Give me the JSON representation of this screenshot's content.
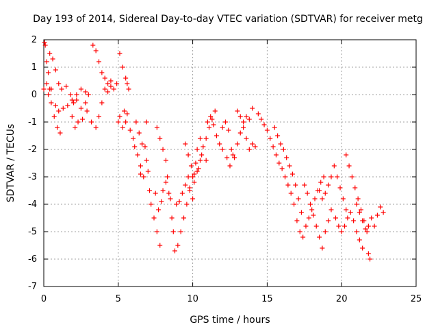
{
  "chart_data": {
    "type": "scatter",
    "title": "Day 193 of 2014, Sidereal Day-to-day VTEC variation (SDTVAR) for receiver metg",
    "xlabel": "GPS time / hours",
    "ylabel": "SDTVAR / TECUs",
    "xlim": [
      0,
      25
    ],
    "ylim": [
      -7,
      2
    ],
    "xticks": [
      "0",
      "5",
      "10",
      "15",
      "20",
      "25"
    ],
    "yticks": [
      "-7",
      "-6",
      "-5",
      "-4",
      "-3",
      "-2",
      "-1",
      "0",
      "1",
      "2"
    ],
    "grid": true,
    "marker": "+",
    "color": "#ff0000",
    "series": [
      {
        "name": "SDTVAR",
        "points": [
          [
            0.0,
            0.2
          ],
          [
            0.05,
            1.9
          ],
          [
            0.1,
            1.8
          ],
          [
            0.2,
            1.2
          ],
          [
            0.3,
            0.8
          ],
          [
            0.4,
            0.2
          ],
          [
            0.5,
            -0.3
          ],
          [
            0.7,
            -0.8
          ],
          [
            0.9,
            -1.2
          ],
          [
            1.1,
            -1.4
          ],
          [
            0.2,
            0.4
          ],
          [
            0.4,
            1.5
          ],
          [
            0.6,
            1.3
          ],
          [
            0.8,
            0.9
          ],
          [
            1.0,
            0.4
          ],
          [
            1.2,
            0.2
          ],
          [
            1.5,
            0.3
          ],
          [
            1.8,
            0.0
          ],
          [
            2.0,
            -0.3
          ],
          [
            2.2,
            -0.2
          ],
          [
            2.5,
            -0.5
          ],
          [
            2.8,
            -0.3
          ],
          [
            3.0,
            0.0
          ],
          [
            3.3,
            1.8
          ],
          [
            3.5,
            1.6
          ],
          [
            3.7,
            1.2
          ],
          [
            3.9,
            0.8
          ],
          [
            4.1,
            0.6
          ],
          [
            4.3,
            0.4
          ],
          [
            4.5,
            0.5
          ],
          [
            0.3,
            0.0
          ],
          [
            0.5,
            0.2
          ],
          [
            0.8,
            -0.4
          ],
          [
            1.0,
            -0.6
          ],
          [
            1.3,
            -0.5
          ],
          [
            1.6,
            -0.4
          ],
          [
            1.9,
            -0.2
          ],
          [
            2.2,
            0.0
          ],
          [
            2.5,
            0.2
          ],
          [
            2.8,
            0.1
          ],
          [
            1.9,
            -0.8
          ],
          [
            2.1,
            -1.2
          ],
          [
            2.3,
            -1.0
          ],
          [
            2.6,
            -0.9
          ],
          [
            2.9,
            -0.6
          ],
          [
            3.2,
            -1.0
          ],
          [
            3.5,
            -1.2
          ],
          [
            3.7,
            -0.8
          ],
          [
            3.9,
            -0.3
          ],
          [
            4.1,
            0.2
          ],
          [
            4.3,
            0.1
          ],
          [
            4.5,
            0.3
          ],
          [
            4.7,
            0.2
          ],
          [
            4.9,
            0.4
          ],
          [
            5.1,
            1.5
          ],
          [
            5.3,
            1.0
          ],
          [
            5.5,
            0.6
          ],
          [
            5.6,
            0.4
          ],
          [
            5.7,
            0.2
          ],
          [
            5.5,
            -1.0
          ],
          [
            5.0,
            -1.0
          ],
          [
            5.1,
            -0.8
          ],
          [
            5.3,
            -1.2
          ],
          [
            5.4,
            -0.6
          ],
          [
            5.6,
            -0.7
          ],
          [
            5.8,
            -1.3
          ],
          [
            6.0,
            -1.6
          ],
          [
            6.1,
            -1.9
          ],
          [
            6.3,
            -2.2
          ],
          [
            6.5,
            -2.6
          ],
          [
            6.2,
            -1.0
          ],
          [
            6.4,
            -1.4
          ],
          [
            6.6,
            -1.8
          ],
          [
            6.8,
            -1.9
          ],
          [
            6.9,
            -1.0
          ],
          [
            6.5,
            -2.9
          ],
          [
            6.7,
            -3.0
          ],
          [
            6.9,
            -2.4
          ],
          [
            7.0,
            -2.8
          ],
          [
            7.1,
            -3.5
          ],
          [
            7.2,
            -4.0
          ],
          [
            7.4,
            -4.5
          ],
          [
            7.6,
            -5.0
          ],
          [
            7.8,
            -5.5
          ],
          [
            7.5,
            -3.6
          ],
          [
            7.7,
            -4.2
          ],
          [
            7.9,
            -3.9
          ],
          [
            8.0,
            -3.5
          ],
          [
            8.2,
            -3.2
          ],
          [
            8.4,
            -3.6
          ],
          [
            7.6,
            -1.2
          ],
          [
            7.8,
            -1.6
          ],
          [
            8.0,
            -2.0
          ],
          [
            8.2,
            -2.4
          ],
          [
            8.3,
            -3.0
          ],
          [
            8.5,
            -3.8
          ],
          [
            8.6,
            -4.5
          ],
          [
            8.7,
            -5.0
          ],
          [
            8.8,
            -5.7
          ],
          [
            9.0,
            -5.5
          ],
          [
            9.2,
            -5.0
          ],
          [
            9.4,
            -4.5
          ],
          [
            9.6,
            -4.0
          ],
          [
            9.8,
            -3.5
          ],
          [
            10.0,
            -3.0
          ],
          [
            10.2,
            -2.5
          ],
          [
            10.3,
            -2.0
          ],
          [
            10.5,
            -1.6
          ],
          [
            10.7,
            -1.9
          ],
          [
            10.9,
            -2.4
          ],
          [
            8.9,
            -4.0
          ],
          [
            9.1,
            -3.9
          ],
          [
            9.3,
            -3.6
          ],
          [
            9.5,
            -3.3
          ],
          [
            9.7,
            -3.0
          ],
          [
            9.8,
            -3.4
          ],
          [
            10.0,
            -3.8
          ],
          [
            10.1,
            -3.2
          ],
          [
            10.3,
            -2.8
          ],
          [
            10.5,
            -2.4
          ],
          [
            9.5,
            -1.8
          ],
          [
            9.7,
            -2.2
          ],
          [
            9.9,
            -2.6
          ],
          [
            10.1,
            -2.9
          ],
          [
            10.4,
            -2.7
          ],
          [
            10.6,
            -2.2
          ],
          [
            10.9,
            -1.6
          ],
          [
            11.1,
            -1.2
          ],
          [
            11.3,
            -0.9
          ],
          [
            11.5,
            -0.6
          ],
          [
            11.0,
            -1.0
          ],
          [
            11.2,
            -0.8
          ],
          [
            11.4,
            -1.1
          ],
          [
            11.6,
            -1.5
          ],
          [
            11.8,
            -1.8
          ],
          [
            12.0,
            -1.2
          ],
          [
            12.2,
            -1.0
          ],
          [
            12.4,
            -1.3
          ],
          [
            12.6,
            -2.0
          ],
          [
            12.8,
            -2.3
          ],
          [
            12.0,
            -2.0
          ],
          [
            12.3,
            -2.3
          ],
          [
            12.5,
            -2.6
          ],
          [
            12.7,
            -2.2
          ],
          [
            13.0,
            -1.8
          ],
          [
            13.2,
            -1.4
          ],
          [
            13.4,
            -1.0
          ],
          [
            13.6,
            -0.8
          ],
          [
            13.8,
            -0.9
          ],
          [
            14.0,
            -0.5
          ],
          [
            13.0,
            -0.6
          ],
          [
            13.2,
            -0.8
          ],
          [
            13.4,
            -1.2
          ],
          [
            13.6,
            -1.6
          ],
          [
            13.8,
            -2.0
          ],
          [
            14.0,
            -1.8
          ],
          [
            14.2,
            -1.9
          ],
          [
            14.4,
            -0.7
          ],
          [
            14.6,
            -0.9
          ],
          [
            14.8,
            -1.1
          ],
          [
            15.0,
            -1.3
          ],
          [
            15.2,
            -1.6
          ],
          [
            15.4,
            -1.9
          ],
          [
            15.6,
            -2.2
          ],
          [
            15.8,
            -2.5
          ],
          [
            16.0,
            -2.7
          ],
          [
            16.2,
            -3.0
          ],
          [
            16.4,
            -3.3
          ],
          [
            16.6,
            -3.6
          ],
          [
            16.8,
            -4.0
          ],
          [
            15.5,
            -1.2
          ],
          [
            15.7,
            -1.5
          ],
          [
            15.9,
            -1.8
          ],
          [
            16.1,
            -2.0
          ],
          [
            16.3,
            -2.3
          ],
          [
            16.5,
            -2.6
          ],
          [
            16.7,
            -2.9
          ],
          [
            16.9,
            -3.3
          ],
          [
            17.1,
            -3.8
          ],
          [
            17.3,
            -4.3
          ],
          [
            17.0,
            -4.6
          ],
          [
            17.2,
            -5.0
          ],
          [
            17.4,
            -5.2
          ],
          [
            17.6,
            -4.8
          ],
          [
            17.8,
            -4.5
          ],
          [
            18.0,
            -4.2
          ],
          [
            18.2,
            -3.8
          ],
          [
            18.4,
            -3.5
          ],
          [
            18.6,
            -3.2
          ],
          [
            18.8,
            -3.0
          ],
          [
            17.5,
            -3.3
          ],
          [
            17.7,
            -3.6
          ],
          [
            17.9,
            -4.0
          ],
          [
            18.1,
            -4.4
          ],
          [
            18.3,
            -4.8
          ],
          [
            18.5,
            -5.2
          ],
          [
            18.7,
            -5.6
          ],
          [
            18.9,
            -5.0
          ],
          [
            19.1,
            -4.6
          ],
          [
            19.3,
            -4.2
          ],
          [
            18.5,
            -3.5
          ],
          [
            18.7,
            -3.8
          ],
          [
            18.9,
            -3.6
          ],
          [
            19.1,
            -3.3
          ],
          [
            19.3,
            -3.0
          ],
          [
            19.5,
            -2.6
          ],
          [
            19.7,
            -3.0
          ],
          [
            19.9,
            -3.4
          ],
          [
            20.1,
            -3.8
          ],
          [
            20.3,
            -4.2
          ],
          [
            19.6,
            -4.5
          ],
          [
            19.8,
            -4.8
          ],
          [
            20.0,
            -5.0
          ],
          [
            20.2,
            -4.8
          ],
          [
            20.4,
            -4.5
          ],
          [
            20.6,
            -4.3
          ],
          [
            20.8,
            -4.6
          ],
          [
            21.0,
            -5.0
          ],
          [
            21.2,
            -5.3
          ],
          [
            21.4,
            -5.6
          ],
          [
            20.3,
            -2.2
          ],
          [
            20.5,
            -2.6
          ],
          [
            20.7,
            -3.0
          ],
          [
            20.9,
            -3.4
          ],
          [
            21.1,
            -3.8
          ],
          [
            21.3,
            -4.2
          ],
          [
            21.5,
            -4.6
          ],
          [
            21.7,
            -5.0
          ],
          [
            21.8,
            -5.8
          ],
          [
            21.9,
            -6.0
          ],
          [
            21.0,
            -4.0
          ],
          [
            21.2,
            -4.3
          ],
          [
            21.4,
            -4.6
          ],
          [
            21.6,
            -4.9
          ],
          [
            21.8,
            -4.8
          ],
          [
            22.0,
            -4.5
          ],
          [
            22.2,
            -4.8
          ],
          [
            22.4,
            -4.4
          ],
          [
            22.6,
            -4.1
          ],
          [
            22.8,
            -4.3
          ]
        ]
      }
    ]
  }
}
